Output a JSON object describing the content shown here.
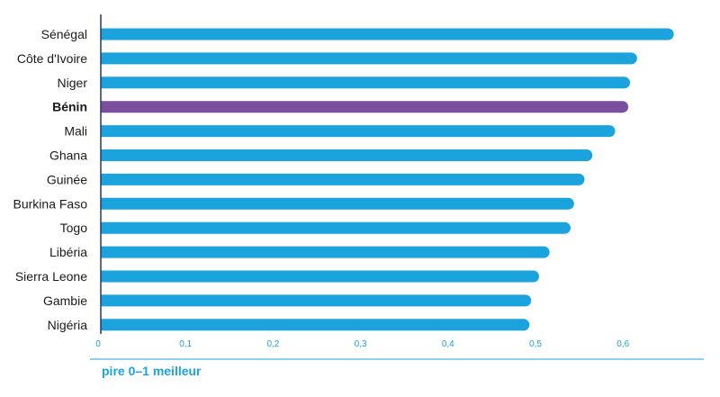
{
  "chart_data": {
    "type": "bar",
    "orientation": "horizontal",
    "categories": [
      "Sénégal",
      "Côte d'Ivoire",
      "Niger",
      "Bénin",
      "Mali",
      "Ghana",
      "Guinée",
      "Burkina Faso",
      "Togo",
      "Libéria",
      "Sierra Leone",
      "Gambie",
      "Nigéria"
    ],
    "values": [
      0.655,
      0.613,
      0.605,
      0.603,
      0.588,
      0.562,
      0.553,
      0.541,
      0.537,
      0.513,
      0.501,
      0.492,
      0.49
    ],
    "highlight": "Bénin",
    "xlim": [
      0,
      0.7
    ],
    "xticks": [
      0,
      0.1,
      0.2,
      0.3,
      0.4,
      0.5,
      0.6
    ],
    "xtick_labels": [
      "0",
      "0,1",
      "0,2",
      "0,3",
      "0,4",
      "0,5",
      "0,6"
    ],
    "xlabel": "pire 0–1 meilleur",
    "title": "",
    "ylabel": "",
    "grid": false
  },
  "colors": {
    "bar": "#1aa3dd",
    "highlight": "#7b4f9d",
    "axis": "#1aa3dd",
    "category_axis": "#1f3a6e",
    "text": "#1a1a1a"
  }
}
